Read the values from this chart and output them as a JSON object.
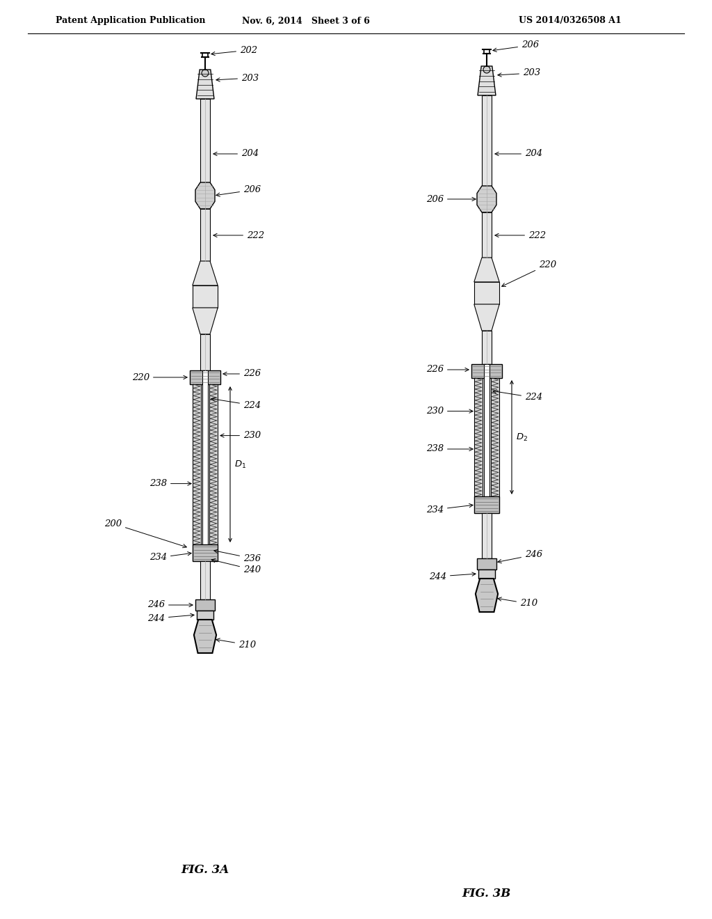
{
  "bg_color": "#ffffff",
  "header_text": "Patent Application Publication",
  "header_date": "Nov. 6, 2014   Sheet 3 of 6",
  "header_patent": "US 2014/0326508 A1",
  "fig3a_label": "FIG. 3A",
  "fig3b_label": "FIG. 3B",
  "line_color": "#000000",
  "fill_light": "#e8e8e8",
  "fill_mid": "#d0d0d0",
  "fill_dark": "#b8b8b8",
  "fill_white": "#ffffff"
}
